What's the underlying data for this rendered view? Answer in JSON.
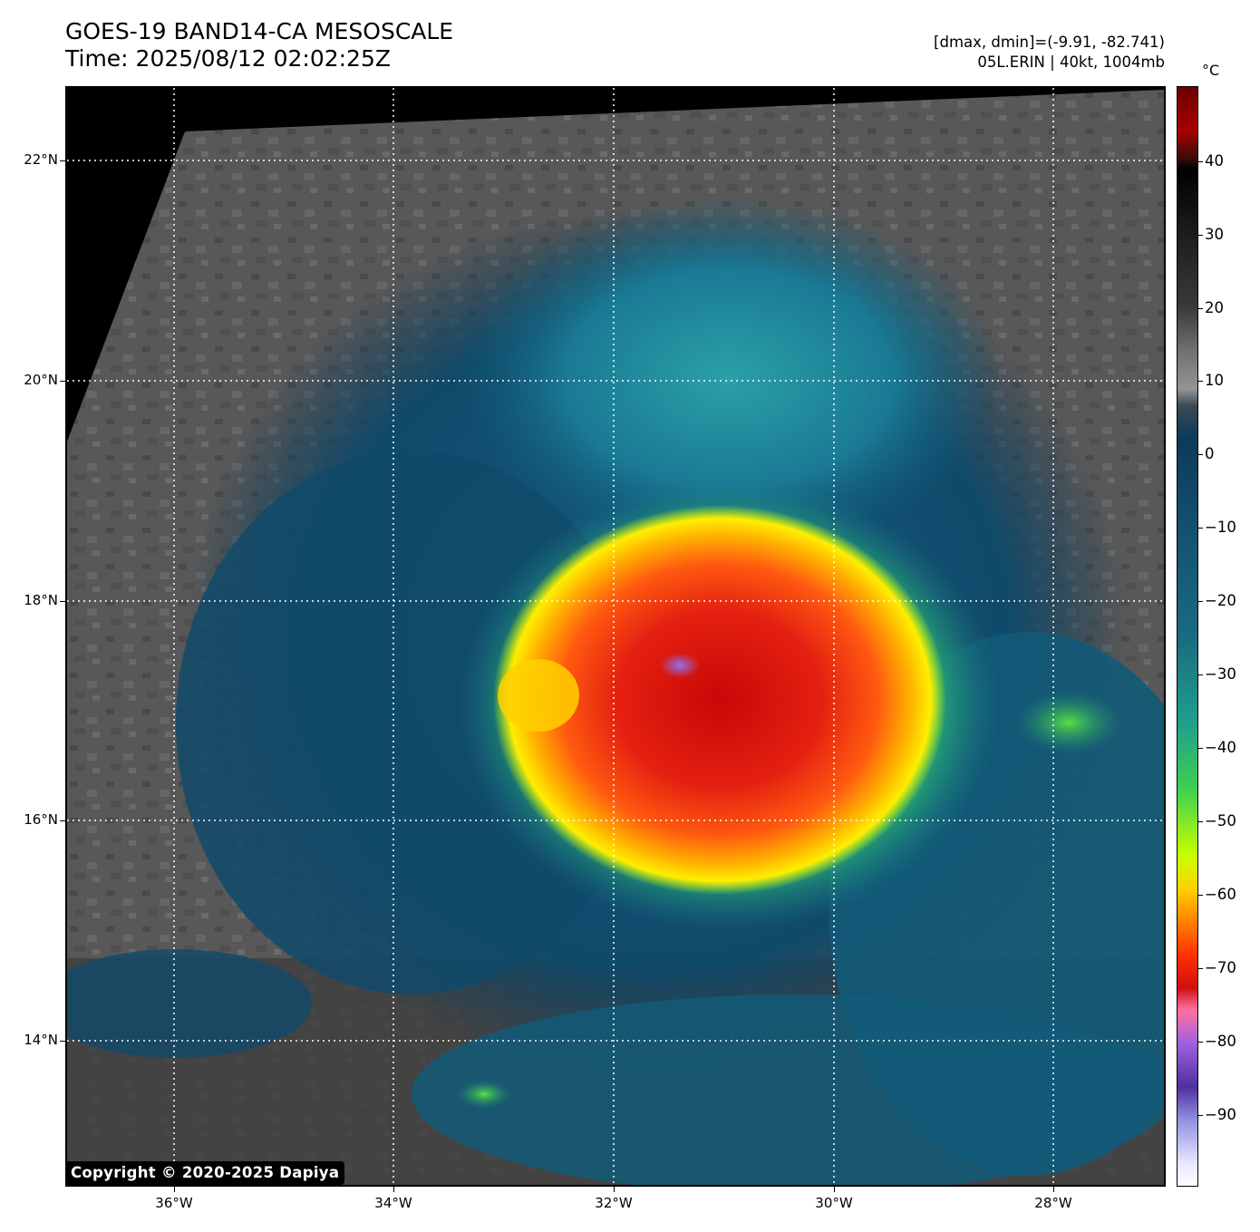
{
  "header": {
    "title_line1": "GOES-19 BAND14-CA MESOSCALE",
    "title_line2": "Time: 2025/08/12 02:02:25Z",
    "range_text": "[dmax, dmin]=(-9.91, -82.741)",
    "storm_text": "05L.ERIN | 40kt, 1004mb"
  },
  "map": {
    "lat_labels": [
      "22°N",
      "20°N",
      "18°N",
      "16°N",
      "14°N"
    ],
    "lon_labels": [
      "36°W",
      "34°W",
      "32°W",
      "30°W",
      "28°W"
    ],
    "gridlines": "dotted white",
    "storm_name": "05L.ERIN",
    "coldest_cloud_top_c": -82.741
  },
  "colorbar": {
    "unit": "°C",
    "labels": [
      "40",
      "30",
      "20",
      "10",
      "0",
      "−10",
      "−20",
      "−30",
      "−40",
      "−50",
      "−60",
      "−70",
      "−80",
      "−90"
    ],
    "range_c": [
      -100,
      50
    ]
  },
  "footer": {
    "copyright": "Copyright © 2020-2025 Dapiya"
  },
  "colors": {
    "background_clear_sky": "#5a5a5a",
    "space_black": "#000000",
    "cloud_teal": "#1a6a80",
    "convection_green": "#40d050",
    "convection_yellow": "#ffd000",
    "coldest_red": "#e02010"
  }
}
